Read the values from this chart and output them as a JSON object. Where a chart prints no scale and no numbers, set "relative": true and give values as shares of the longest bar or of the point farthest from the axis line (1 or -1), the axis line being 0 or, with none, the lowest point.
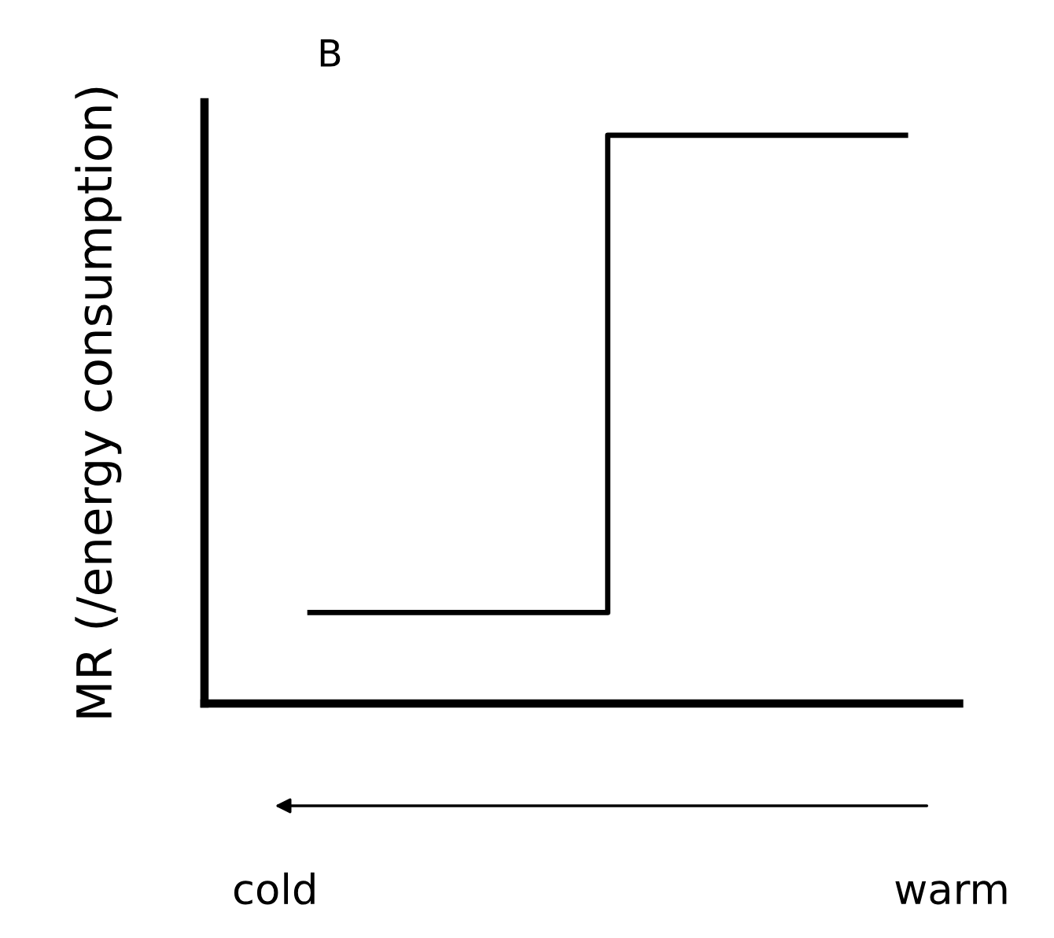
{
  "chart_data": {
    "type": "step",
    "title": "B",
    "ylabel": "MR (/energy consumption)",
    "categories": [
      null,
      null,
      null
    ],
    "series": [
      {
        "color": "#000000",
        "values": [
          0.16,
          1,
          1
        ]
      }
    ],
    "relative": true,
    "annotations": [
      "cold",
      "warm"
    ]
  }
}
